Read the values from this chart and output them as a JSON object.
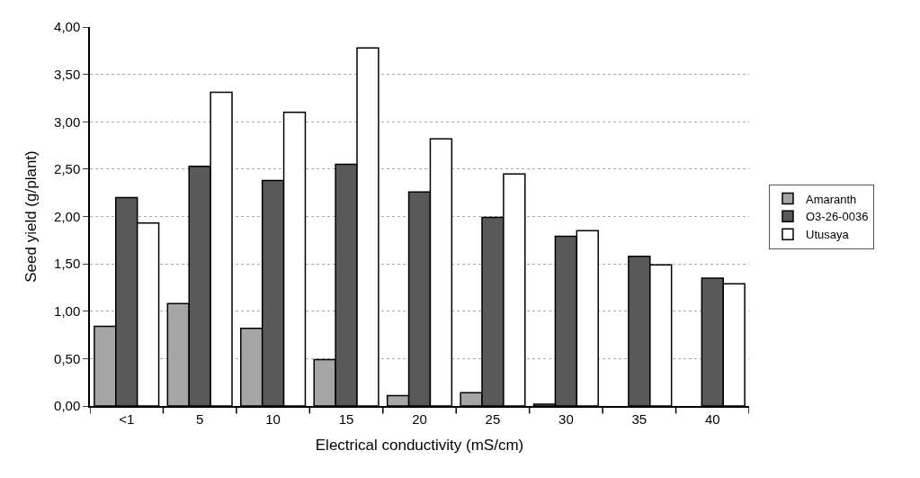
{
  "chart_data": {
    "type": "bar",
    "xlabel": "Electrical conductivity (mS/cm)",
    "ylabel": "Seed yield (g/plant)",
    "categories": [
      "<1",
      "5",
      "10",
      "15",
      "20",
      "25",
      "30",
      "35",
      "40"
    ],
    "series": [
      {
        "name": "Amaranth",
        "color": "#a6a6a6",
        "values": [
          0.84,
          1.08,
          0.82,
          0.49,
          0.11,
          0.14,
          0.02,
          null,
          null
        ]
      },
      {
        "name": "O3-26-0036",
        "color": "#595959",
        "values": [
          2.2,
          2.53,
          2.38,
          2.55,
          2.26,
          1.99,
          1.79,
          1.58,
          1.35
        ]
      },
      {
        "name": "Utusaya",
        "color": "#ffffff",
        "values": [
          1.93,
          3.31,
          3.1,
          3.78,
          2.82,
          2.45,
          1.85,
          1.49,
          1.29
        ]
      }
    ],
    "ylim": [
      0,
      4
    ],
    "yticks": [
      {
        "value": 0,
        "label": "0,00"
      },
      {
        "value": 0.5,
        "label": "0,50"
      },
      {
        "value": 1,
        "label": "1,00"
      },
      {
        "value": 1.5,
        "label": "1,50"
      },
      {
        "value": 2,
        "label": "2,00"
      },
      {
        "value": 2.5,
        "label": "2,50"
      },
      {
        "value": 3,
        "label": "3,00"
      },
      {
        "value": 3.5,
        "label": "3,50"
      },
      {
        "value": 4,
        "label": "4,00"
      }
    ],
    "grid": "y",
    "legend": "right"
  }
}
